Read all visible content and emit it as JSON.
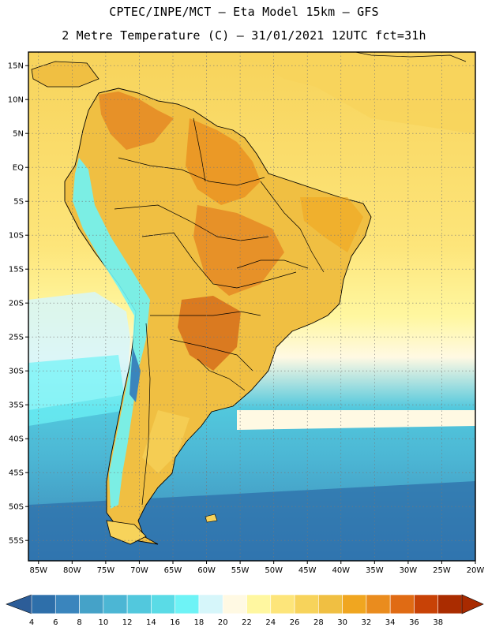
{
  "header": {
    "line1": "CPTEC/INPE/MCT –  Eta Model 15km – GFS",
    "line2": "2 Metre Temperature (C) – 31/01/2021 12UTC fct=31h"
  },
  "map": {
    "lat_labels": [
      "15N",
      "10N",
      "5N",
      "EQ",
      "5S",
      "10S",
      "15S",
      "20S",
      "25S",
      "30S",
      "35S",
      "40S",
      "45S",
      "50S",
      "55S"
    ],
    "lat_values": [
      15,
      10,
      5,
      0,
      -5,
      -10,
      -15,
      -20,
      -25,
      -30,
      -35,
      -40,
      -45,
      -50,
      -55
    ],
    "lon_labels": [
      "85W",
      "80W",
      "75W",
      "70W",
      "65W",
      "60W",
      "55W",
      "50W",
      "45W",
      "40W",
      "35W",
      "30W",
      "25W",
      "20W"
    ],
    "lon_values": [
      -85,
      -80,
      -75,
      -70,
      -65,
      -60,
      -55,
      -50,
      -45,
      -40,
      -35,
      -30,
      -25,
      -20
    ],
    "lat_range": [
      -58,
      17
    ],
    "lon_range": [
      -86.5,
      -20
    ]
  },
  "colorbar": {
    "labels": [
      "4",
      "6",
      "8",
      "10",
      "12",
      "14",
      "16",
      "18",
      "20",
      "22",
      "24",
      "26",
      "28",
      "30",
      "32",
      "34",
      "36",
      "38"
    ],
    "colors": [
      "#2e6faa",
      "#3a85bd",
      "#45a2c8",
      "#4cb6d4",
      "#52c8dd",
      "#5adbe6",
      "#6ef3f6",
      "#d6f6fa",
      "#fff9e3",
      "#fff7a0",
      "#fde57a",
      "#f7d35b",
      "#f0bf42",
      "#f0a620",
      "#ea8c1e",
      "#e06b14",
      "#c84206",
      "#aa2c00"
    ],
    "low_color": "#2c5d98",
    "high_color": "#a82a00"
  }
}
